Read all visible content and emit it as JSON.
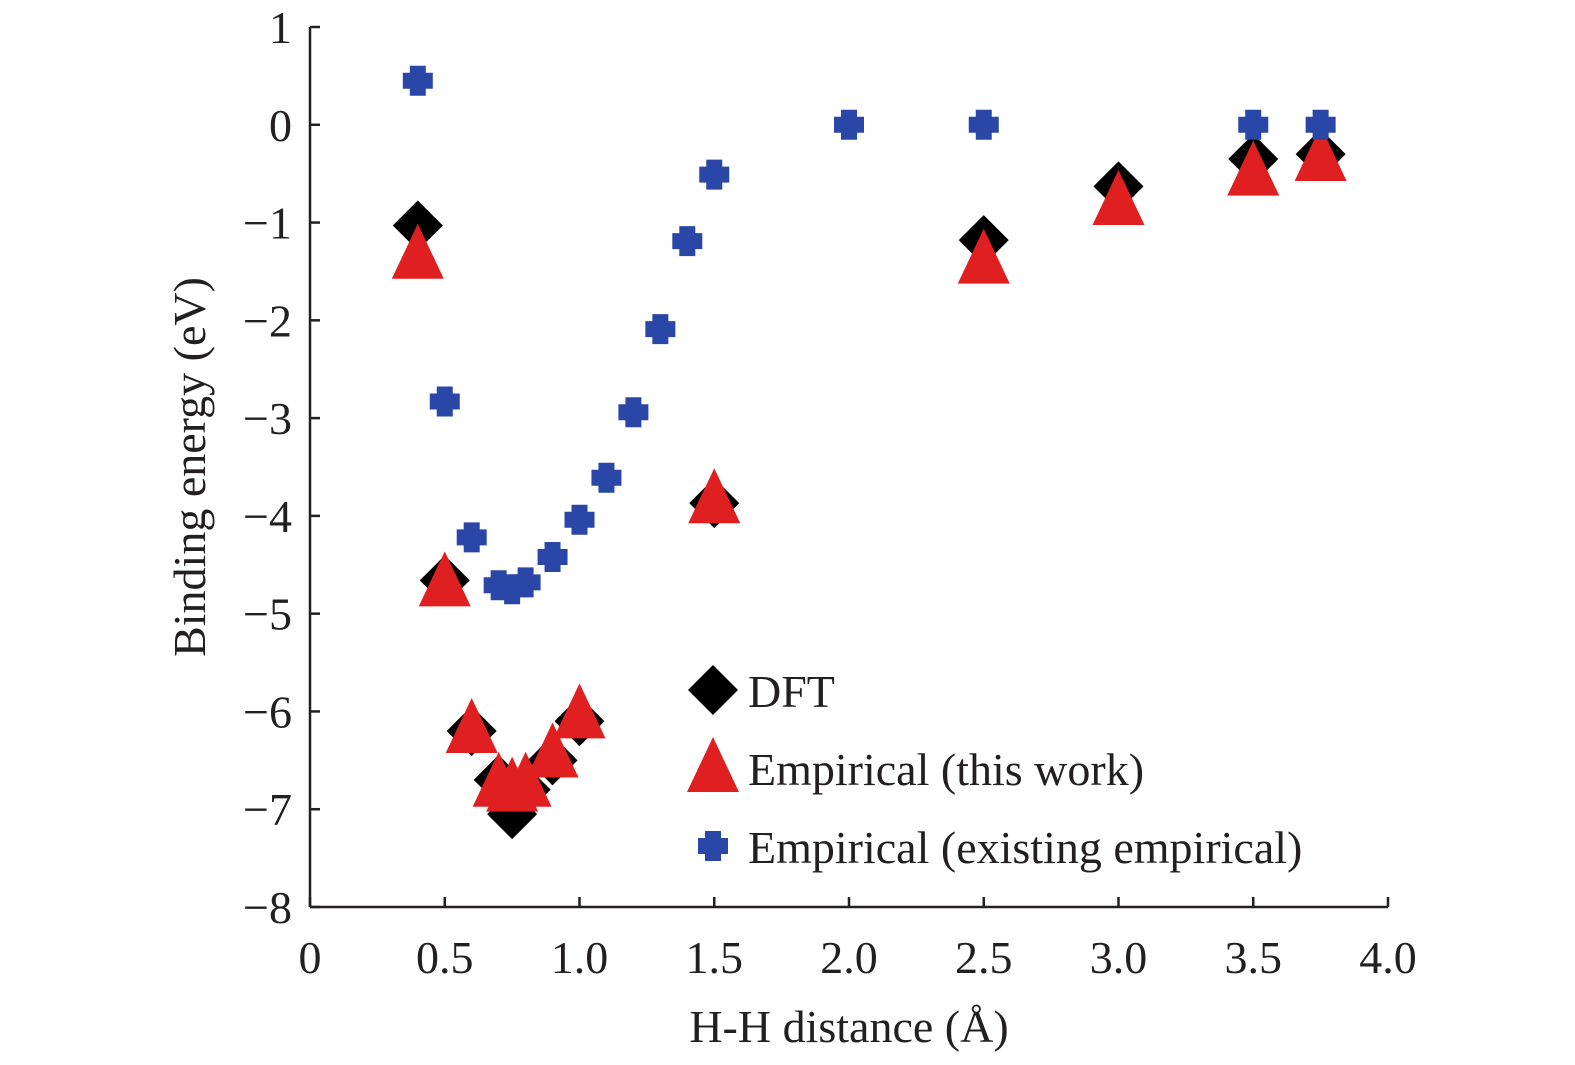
{
  "chart_data": {
    "type": "scatter",
    "title": "",
    "xlabel": "H-H distance (Å)",
    "ylabel": "Binding energy (eV)",
    "xlim": [
      0,
      4.0
    ],
    "ylim": [
      -8,
      1
    ],
    "xticks": [
      0,
      0.5,
      1.0,
      1.5,
      2.0,
      2.5,
      3.0,
      3.5,
      4.0
    ],
    "xtick_labels": [
      "0",
      "0.5",
      "1.0",
      "1.5",
      "2.0",
      "2.5",
      "3.0",
      "3.5",
      "4.0"
    ],
    "yticks": [
      1,
      0,
      -1,
      -2,
      -3,
      -4,
      -5,
      -6,
      -7,
      -8
    ],
    "ytick_labels": [
      "1",
      "0",
      "−1",
      "−2",
      "−3",
      "−4",
      "−5",
      "−6",
      "−7",
      "−8"
    ],
    "grid": false,
    "legend_position": "bottom-right",
    "series": [
      {
        "name": "DFT",
        "marker": "diamond",
        "color": "#000000",
        "x": [
          0.4,
          0.5,
          0.6,
          0.7,
          0.75,
          0.8,
          0.9,
          1.0,
          1.5,
          2.5,
          3.0,
          3.5,
          3.75
        ],
        "y": [
          -1.03,
          -4.66,
          -6.2,
          -6.7,
          -7.05,
          -6.8,
          -6.5,
          -6.1,
          -3.87,
          -1.18,
          -0.63,
          -0.35,
          -0.3
        ]
      },
      {
        "name": "Empirical (this work)",
        "marker": "triangle",
        "color": "#e02020",
        "x": [
          0.4,
          0.5,
          0.6,
          0.7,
          0.75,
          0.8,
          0.9,
          1.0,
          1.5,
          2.5,
          3.0,
          3.5,
          3.75
        ],
        "y": [
          -1.35,
          -4.7,
          -6.2,
          -6.75,
          -6.8,
          -6.75,
          -6.45,
          -6.05,
          -3.85,
          -1.4,
          -0.8,
          -0.5,
          -0.35
        ]
      },
      {
        "name": "Empirical (existing empirical)",
        "marker": "circle",
        "color": "#2a47a8",
        "x": [
          0.4,
          0.5,
          0.6,
          0.7,
          0.75,
          0.8,
          0.9,
          1.0,
          1.1,
          1.2,
          1.3,
          1.4,
          1.5,
          2.0,
          2.5,
          3.5,
          3.75
        ],
        "y": [
          0.45,
          -2.83,
          -4.22,
          -4.71,
          -4.75,
          -4.68,
          -4.42,
          -4.04,
          -3.61,
          -2.94,
          -2.09,
          -1.19,
          -0.51,
          0,
          0,
          0,
          0
        ]
      }
    ]
  }
}
